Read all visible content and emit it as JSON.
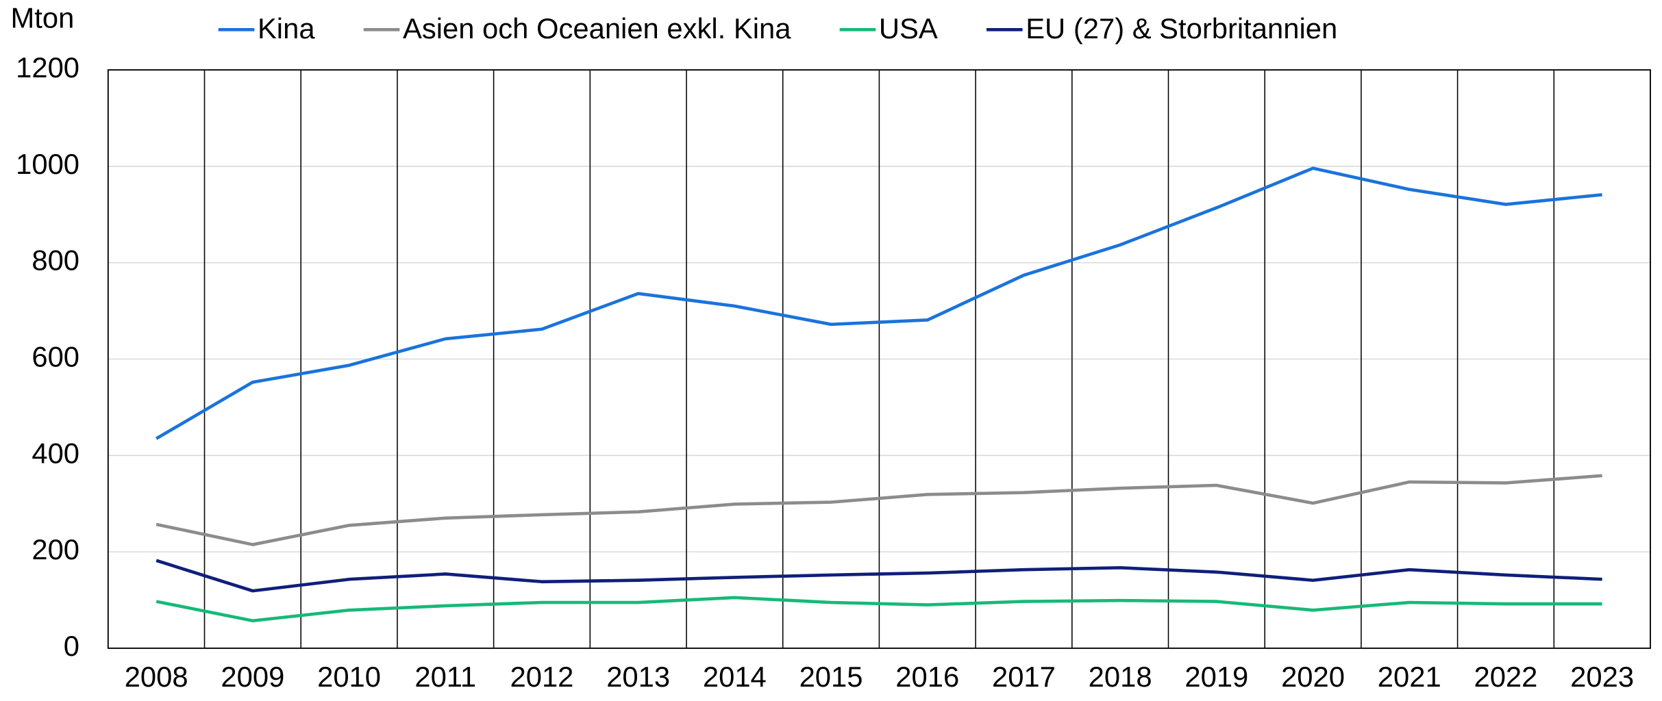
{
  "chart_data": {
    "type": "line",
    "y_label": "Mton",
    "categories": [
      "2008",
      "2009",
      "2010",
      "2011",
      "2012",
      "2013",
      "2014",
      "2015",
      "2016",
      "2017",
      "2018",
      "2019",
      "2020",
      "2021",
      "2022",
      "2023"
    ],
    "series": [
      {
        "name": "Kina",
        "color": "#1a73dc",
        "values": [
          435,
          552,
          587,
          642,
          662,
          736,
          710,
          672,
          681,
          774,
          837,
          914,
          996,
          952,
          921,
          941
        ]
      },
      {
        "name": "Asien och Oceanien exkl. Kina",
        "color": "#8c8c8c",
        "values": [
          257,
          215,
          255,
          270,
          277,
          283,
          299,
          303,
          319,
          323,
          332,
          338,
          301,
          345,
          343,
          358
        ]
      },
      {
        "name": "USA",
        "color": "#17b978",
        "values": [
          97,
          57,
          79,
          88,
          95,
          95,
          105,
          95,
          90,
          97,
          99,
          97,
          79,
          95,
          92,
          92
        ]
      },
      {
        "name": "EU (27) & Storbritannien",
        "color": "#0f1f7a",
        "values": [
          182,
          119,
          143,
          154,
          138,
          141,
          147,
          152,
          156,
          163,
          167,
          158,
          141,
          163,
          152,
          143
        ]
      }
    ],
    "ylim": [
      0,
      1200
    ],
    "yticks": [
      0,
      200,
      400,
      600,
      800,
      1000,
      1200
    ],
    "grid": true
  }
}
